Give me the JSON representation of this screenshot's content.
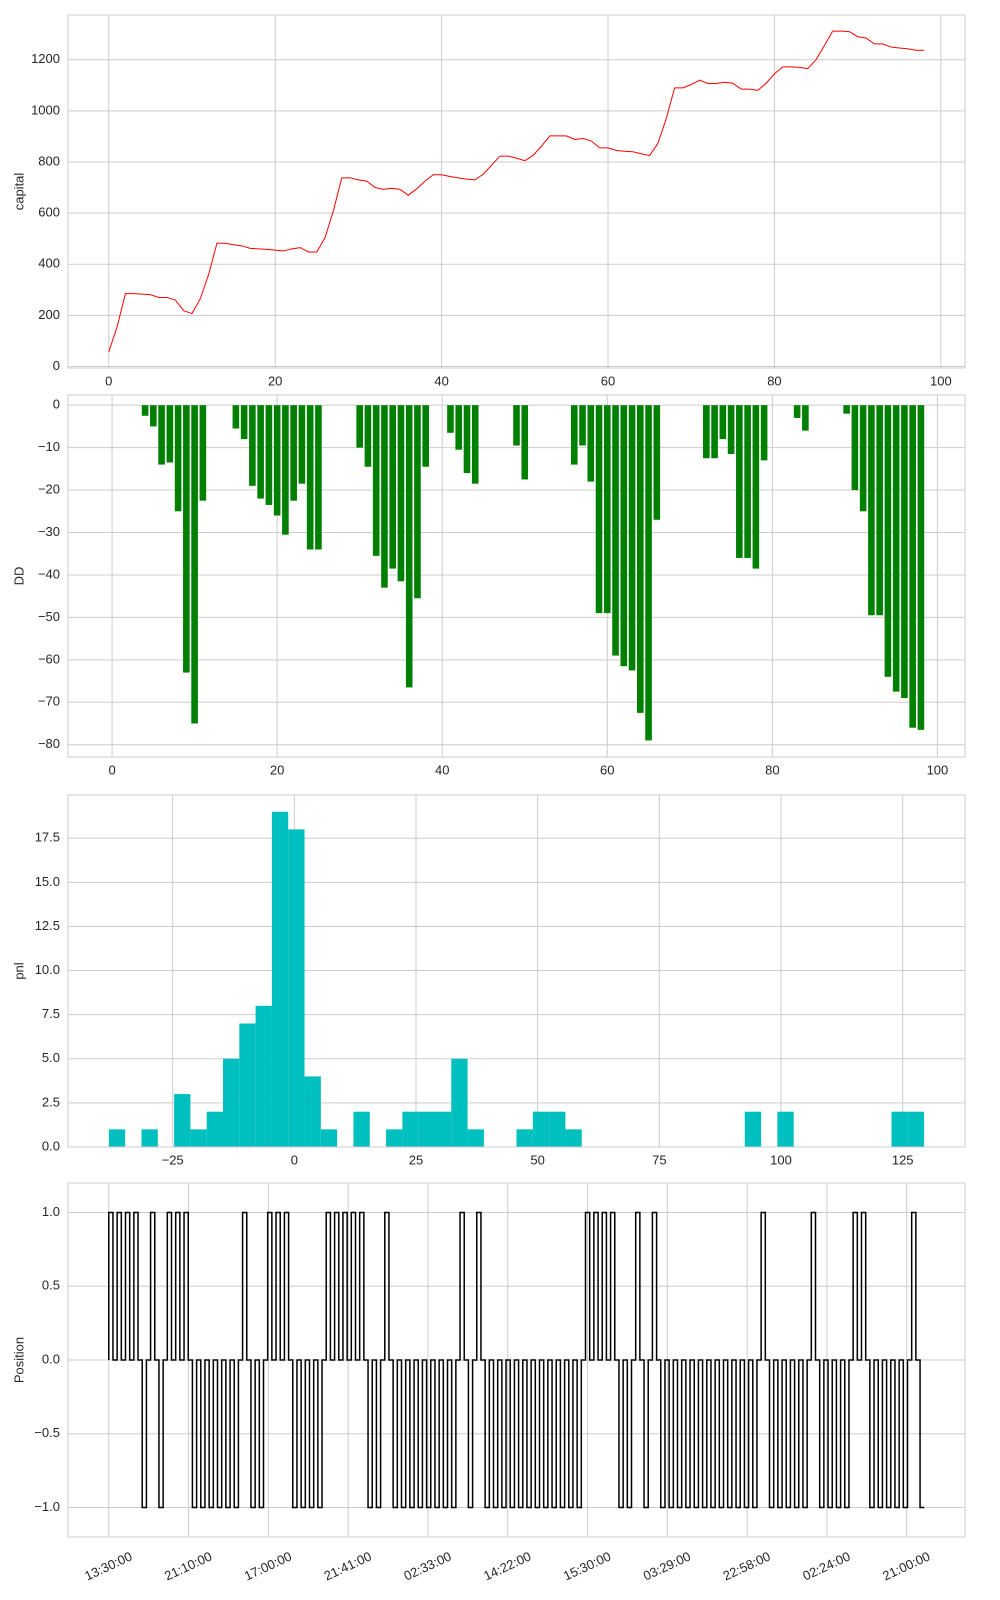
{
  "chart_data": [
    {
      "type": "line",
      "ylabel": "capital",
      "color": "#ff0000",
      "grid": true,
      "values": [
        57,
        155,
        285,
        285,
        283,
        281,
        270,
        270,
        260,
        218,
        207,
        265,
        360,
        482,
        482,
        476,
        472,
        462,
        460,
        458,
        455,
        452,
        460,
        465,
        448,
        448,
        505,
        610,
        738,
        738,
        730,
        725,
        700,
        693,
        697,
        693,
        670,
        695,
        725,
        750,
        750,
        743,
        738,
        733,
        730,
        752,
        787,
        823,
        823,
        815,
        805,
        826,
        862,
        902,
        902,
        902,
        888,
        892,
        882,
        855,
        855,
        845,
        842,
        840,
        832,
        825,
        873,
        970,
        1090,
        1090,
        1103,
        1120,
        1107,
        1107,
        1112,
        1108,
        1085,
        1085,
        1080,
        1108,
        1145,
        1172,
        1172,
        1170,
        1165,
        1200,
        1255,
        1312,
        1312,
        1310,
        1290,
        1285,
        1262,
        1262,
        1250,
        1246,
        1243,
        1237,
        1237
      ],
      "xlim": [
        -4.9,
        102.9
      ],
      "xticks": [
        0,
        20,
        40,
        60,
        80,
        100
      ],
      "ylim": [
        -6,
        1375
      ],
      "yticks": [
        0,
        200,
        400,
        600,
        800,
        1000,
        1200
      ]
    },
    {
      "type": "bar",
      "ylabel": "DD",
      "color": "#008000",
      "grid": true,
      "values": [
        0,
        0,
        0,
        0,
        -2.5,
        -5,
        -14,
        -13.5,
        -25,
        -63,
        -75,
        -22.5,
        0,
        0,
        0,
        -5.5,
        -8,
        -19,
        -22,
        -23.5,
        -26,
        -30.5,
        -22.5,
        -18.5,
        -34,
        -34,
        0,
        0,
        0,
        0,
        -10,
        -14.5,
        -35.5,
        -43,
        -38.5,
        -41.5,
        -66.5,
        -45.5,
        -14.5,
        0,
        0,
        -6.5,
        -10.5,
        -16,
        -18.5,
        0,
        0,
        0,
        0,
        -9.5,
        -17.5,
        0,
        0,
        0,
        0,
        0,
        -14,
        -9.5,
        -18,
        -49,
        -49,
        -59,
        -61.5,
        -62.5,
        -72.5,
        -79,
        -27,
        0,
        0,
        0,
        0,
        0,
        -12.5,
        -12.5,
        -8,
        -11.5,
        -36,
        -36,
        -38.5,
        -13,
        0,
        0,
        0,
        -3,
        -6,
        0,
        0,
        0,
        0,
        -2,
        -20,
        -25,
        -49.5,
        -49.5,
        -64,
        -67.5,
        -69,
        -76,
        -76.5
      ],
      "xlim": [
        -5.34,
        103.34
      ],
      "xticks": [
        0,
        20,
        40,
        60,
        80,
        100
      ],
      "ylim": [
        -82.9,
        2.4
      ],
      "yticks": [
        {
          "value": 0,
          "label": "0"
        },
        {
          "value": -10,
          "label": "−10"
        },
        {
          "value": -20,
          "label": "−20"
        },
        {
          "value": -30,
          "label": "−30"
        },
        {
          "value": -40,
          "label": "−40"
        },
        {
          "value": -50,
          "label": "−50"
        },
        {
          "value": -60,
          "label": "−60"
        },
        {
          "value": -70,
          "label": "−70"
        },
        {
          "value": -80,
          "label": "−80"
        }
      ]
    },
    {
      "type": "histogram",
      "ylabel": "pnl",
      "color": "#00bfbf",
      "grid": true,
      "bins": [
        -38.1,
        -34.75,
        -31.4,
        -28.05,
        -24.7,
        -21.35,
        -18.0,
        -14.65,
        -11.3,
        -7.95,
        -4.6,
        -1.25,
        2.1,
        5.45,
        8.8,
        12.15,
        15.5,
        18.85,
        22.2,
        25.55,
        28.9,
        32.25,
        35.6,
        38.95,
        42.3,
        45.65,
        49.0,
        52.35,
        55.7,
        59.05,
        62.4,
        65.75,
        69.1,
        72.45,
        75.8,
        79.15,
        82.5,
        85.85,
        89.2,
        92.55,
        95.9,
        99.25,
        102.6,
        105.95,
        109.3,
        112.65,
        116.0,
        119.35,
        122.7,
        126.05,
        129.4
      ],
      "values": [
        1,
        0,
        1,
        0,
        3,
        1,
        2,
        5,
        7,
        8,
        19,
        18,
        4,
        1,
        0,
        2,
        0,
        1,
        2,
        2,
        2,
        5,
        1,
        0,
        0,
        1,
        2,
        2,
        1,
        0,
        0,
        0,
        0,
        0,
        0,
        0,
        0,
        0,
        0,
        2,
        0,
        2,
        0,
        0,
        0,
        0,
        0,
        0,
        2,
        2
      ],
      "xlim": [
        -46.5,
        137.8
      ],
      "xticks": [
        {
          "value": -25,
          "label": "−25"
        },
        0,
        25,
        50,
        75,
        100,
        125
      ],
      "ylim": [
        0,
        19.95
      ],
      "yticks": [
        {
          "value": 0,
          "label": "0.0"
        },
        2.5,
        {
          "value": 5,
          "label": "5.0"
        },
        7.5,
        {
          "value": 10,
          "label": "10.0"
        },
        12.5,
        {
          "value": 15,
          "label": "15.0"
        },
        17.5
      ]
    },
    {
      "type": "step",
      "ylabel": "Position",
      "color": "#000000",
      "grid": true,
      "values": [
        0,
        1,
        0,
        1,
        0,
        1,
        0,
        1,
        0,
        -1,
        0,
        1,
        0,
        -1,
        0,
        1,
        0,
        1,
        0,
        1,
        0,
        -1,
        0,
        -1,
        0,
        -1,
        0,
        -1,
        0,
        -1,
        0,
        -1,
        0,
        1,
        0,
        -1,
        0,
        -1,
        0,
        1,
        0,
        1,
        0,
        1,
        0,
        -1,
        0,
        -1,
        0,
        -1,
        0,
        -1,
        0,
        1,
        0,
        1,
        0,
        1,
        0,
        1,
        0,
        1,
        0,
        -1,
        0,
        -1,
        0,
        1,
        0,
        -1,
        0,
        -1,
        0,
        -1,
        0,
        -1,
        0,
        -1,
        0,
        -1,
        0,
        -1,
        0,
        -1,
        0,
        1,
        0,
        -1,
        0,
        1,
        0,
        -1,
        0,
        -1,
        0,
        -1,
        0,
        -1,
        0,
        -1,
        0,
        -1,
        0,
        -1,
        0,
        -1,
        0,
        -1,
        0,
        -1,
        0,
        -1,
        0,
        -1,
        0,
        1,
        0,
        1,
        0,
        1,
        0,
        1,
        0,
        -1,
        0,
        -1,
        0,
        1,
        0,
        -1,
        0,
        1,
        0,
        -1,
        0,
        -1,
        0,
        -1,
        0,
        -1,
        0,
        -1,
        0,
        -1,
        0,
        -1,
        0,
        -1,
        0,
        -1,
        0,
        -1,
        0,
        -1,
        0,
        -1,
        0,
        1,
        0,
        -1,
        0,
        -1,
        0,
        -1,
        0,
        -1,
        0,
        -1,
        0,
        1,
        0,
        -1,
        0,
        -1,
        0,
        -1,
        0,
        -1,
        0,
        1,
        0,
        1,
        0,
        -1,
        0,
        -1,
        0,
        -1,
        0,
        -1,
        0,
        -1,
        0,
        1,
        0,
        -1
      ],
      "xlim": [
        -9.75,
        204.75
      ],
      "xticks": [
        {
          "value": 0,
          "label": "13:30:00"
        },
        {
          "value": 19.08,
          "label": "21:10:00"
        },
        {
          "value": 38.16,
          "label": "17:00:00"
        },
        {
          "value": 57.24,
          "label": "21:41:00"
        },
        {
          "value": 76.32,
          "label": "02:33:00"
        },
        {
          "value": 95.4,
          "label": "14:22:00"
        },
        {
          "value": 114.48,
          "label": "15:30:00"
        },
        {
          "value": 133.56,
          "label": "03:29:00"
        },
        {
          "value": 152.64,
          "label": "22:58:00"
        },
        {
          "value": 171.72,
          "label": "02:24:00"
        },
        {
          "value": 190.8,
          "label": "21:00:00"
        }
      ],
      "ylim": [
        -1.2,
        1.2
      ],
      "yticks": [
        {
          "value": -1,
          "label": "−1.0"
        },
        {
          "value": -0.5,
          "label": "−0.5"
        },
        {
          "value": 0,
          "label": "0.0"
        },
        {
          "value": 0.5,
          "label": "0.5"
        },
        {
          "value": 1,
          "label": "1.0"
        }
      ]
    }
  ]
}
